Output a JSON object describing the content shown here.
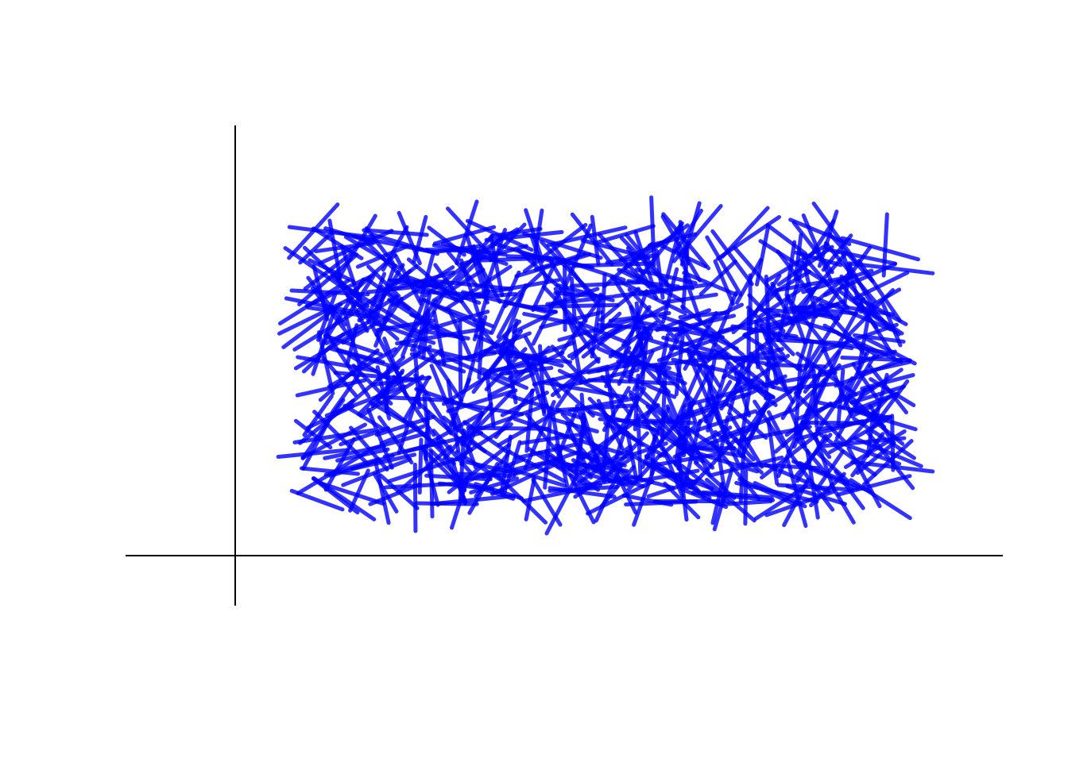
{
  "chart_data": {
    "type": "line",
    "title": "",
    "xlabel": "",
    "ylabel": "",
    "xlim": [
      -1,
      7
    ],
    "ylim": [
      -0.5,
      4.3
    ],
    "grid": false,
    "legend": "none",
    "axes": {
      "vertical_at_x": 0,
      "horizontal_at_y": 0
    },
    "series": [
      {
        "color": "#0000ff",
        "opacity": 0.8,
        "segment_count": 800,
        "segment_length_approx": 0.6,
        "segment_centers_xrange": [
          0.7,
          6.0
        ],
        "segment_centers_yrange": [
          0.5,
          3.25
        ],
        "random_seed": 42
      }
    ]
  }
}
